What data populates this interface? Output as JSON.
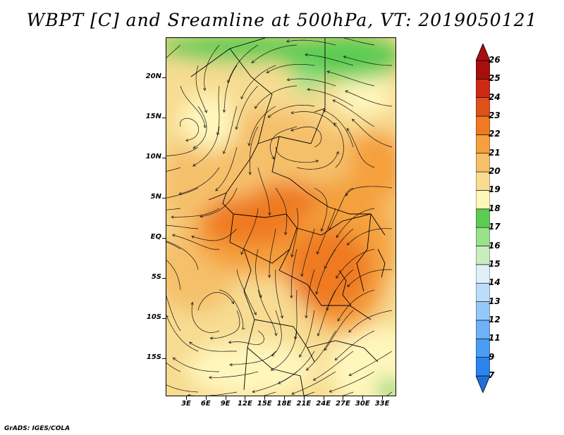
{
  "title": "WBPT [C] and Sreamline at 500hPa, VT: 2019050121",
  "credit": "GrADS: IGES/COLA",
  "lat_axis": [
    {
      "value": 20,
      "label": "20N"
    },
    {
      "value": 15,
      "label": "15N"
    },
    {
      "value": 10,
      "label": "10N"
    },
    {
      "value": 5,
      "label": "5N"
    },
    {
      "value": 0,
      "label": "EQ"
    },
    {
      "value": -5,
      "label": "5S"
    },
    {
      "value": -10,
      "label": "10S"
    },
    {
      "value": -15,
      "label": "15S"
    }
  ],
  "lon_axis": [
    {
      "value": 3,
      "label": "3E"
    },
    {
      "value": 6,
      "label": "6E"
    },
    {
      "value": 9,
      "label": "9E"
    },
    {
      "value": 12,
      "label": "12E"
    },
    {
      "value": 15,
      "label": "15E"
    },
    {
      "value": 18,
      "label": "18E"
    },
    {
      "value": 21,
      "label": "21E"
    },
    {
      "value": 24,
      "label": "24E"
    },
    {
      "value": 27,
      "label": "27E"
    },
    {
      "value": 30,
      "label": "30E"
    },
    {
      "value": 33,
      "label": "33E"
    }
  ],
  "colorbar": {
    "levels": [
      "7",
      "9",
      "11",
      "12",
      "13",
      "14",
      "15",
      "16",
      "17",
      "18",
      "19",
      "20",
      "21",
      "22",
      "23",
      "24",
      "25",
      "26"
    ],
    "colors": [
      "#1e6fdc",
      "#2c84ee",
      "#4a9cf4",
      "#6eb1f6",
      "#94c8f8",
      "#bcdcfa",
      "#dff0fb",
      "#c8eebe",
      "#98e28a",
      "#5ccc52",
      "#fff6bc",
      "#f7dc92",
      "#f5c06a",
      "#f5a03c",
      "#ef7a22",
      "#e0501a",
      "#cc2a14",
      "#a80e0e",
      "#a80e0e"
    ]
  }
}
